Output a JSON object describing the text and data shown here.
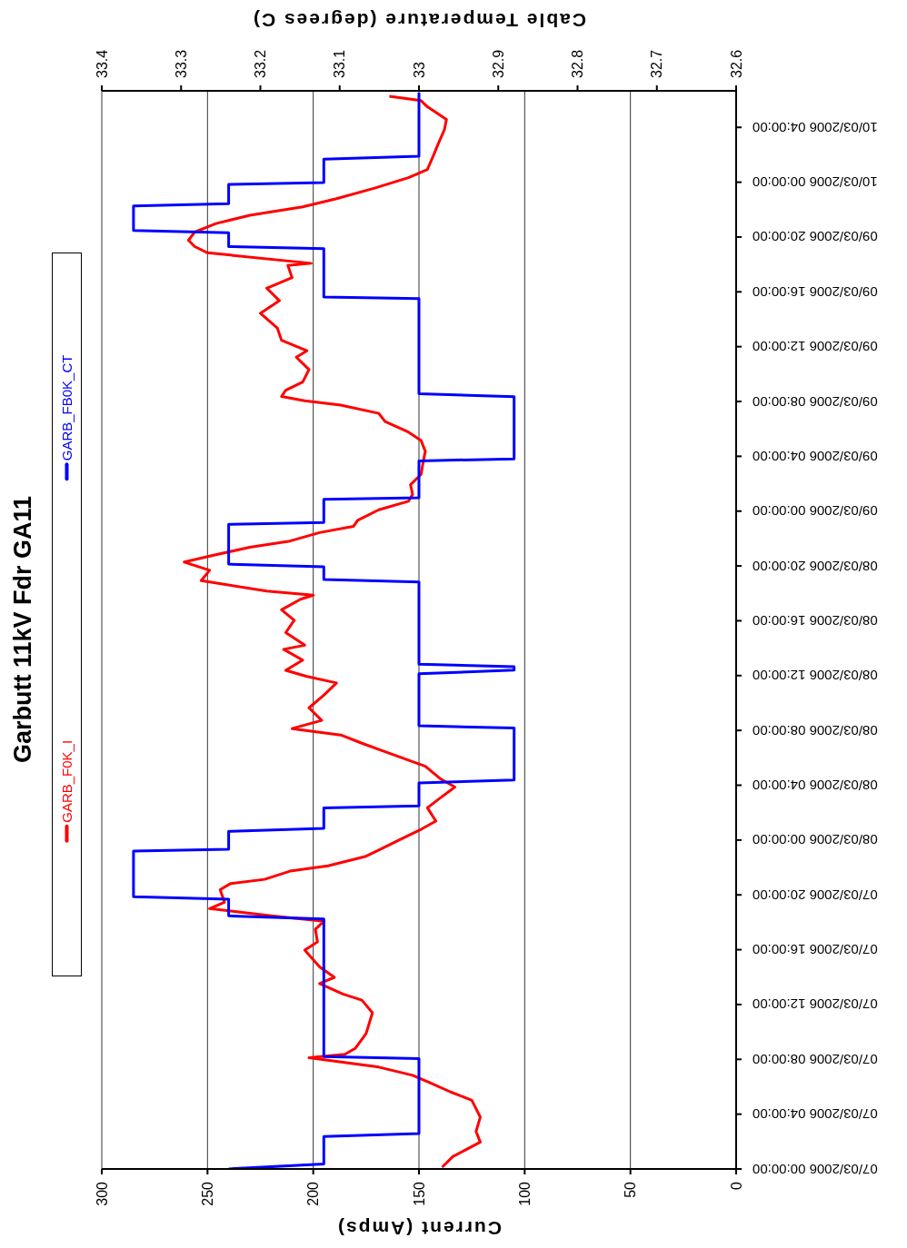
{
  "chart_data": {
    "type": "line",
    "orientation": "horizontal",
    "title": "Garbutt 11kV Fdr GA11",
    "xlabel": "Current (Amps)",
    "x2label": "Cable Temperature (degrees C)",
    "ylim": [
      "2006-03-07T00:00",
      "2006-03-10T06:40"
    ],
    "yticks": [
      {
        "value": "2006-03-07T00:00",
        "label": "07/03/2006 00:00:00"
      },
      {
        "value": "2006-03-07T04:00",
        "label": "07/03/2006 04:00:00"
      },
      {
        "value": "2006-03-07T08:00",
        "label": "07/03/2006 08:00:00"
      },
      {
        "value": "2006-03-07T12:00",
        "label": "07/03/2006 12:00:00"
      },
      {
        "value": "2006-03-07T16:00",
        "label": "07/03/2006 16:00:00"
      },
      {
        "value": "2006-03-07T20:00",
        "label": "07/03/2006 20:00:00"
      },
      {
        "value": "2006-03-08T00:00",
        "label": "08/03/2006 00:00:00"
      },
      {
        "value": "2006-03-08T04:00",
        "label": "08/03/2006 04:00:00"
      },
      {
        "value": "2006-03-08T08:00",
        "label": "08/03/2006 08:00:00"
      },
      {
        "value": "2006-03-08T12:00",
        "label": "08/03/2006 12:00:00"
      },
      {
        "value": "2006-03-08T16:00",
        "label": "08/03/2006 16:00:00"
      },
      {
        "value": "2006-03-08T20:00",
        "label": "08/03/2006 20:00:00"
      },
      {
        "value": "2006-03-09T00:00",
        "label": "09/03/2006 00:00:00"
      },
      {
        "value": "2006-03-09T04:00",
        "label": "09/03/2006 04:00:00"
      },
      {
        "value": "2006-03-09T08:00",
        "label": "09/03/2006 08:00:00"
      },
      {
        "value": "2006-03-09T12:00",
        "label": "09/03/2006 12:00:00"
      },
      {
        "value": "2006-03-09T16:00",
        "label": "09/03/2006 16:00:00"
      },
      {
        "value": "2006-03-09T20:00",
        "label": "09/03/2006 20:00:00"
      },
      {
        "value": "2006-03-10T00:00",
        "label": "10/03/2006 00:00:00"
      },
      {
        "value": "2006-03-10T04:00",
        "label": "10/03/2006 04:00:00"
      }
    ],
    "xlim": [
      300,
      0
    ],
    "xticks": [
      300,
      250,
      200,
      150,
      100,
      50,
      0
    ],
    "x2lim": [
      33.4,
      32.6
    ],
    "x2ticks": [
      33.4,
      33.3,
      33.2,
      33.1,
      33,
      32.9,
      32.8,
      32.7,
      32.6
    ],
    "grid": "x",
    "legend": "left",
    "series": [
      {
        "name": "GARB_F0K_I",
        "color": "#ff0000",
        "x": [
          "2006-03-07T00:08",
          "2006-03-07T00:54",
          "2006-03-07T01:58",
          "2006-03-07T02:44",
          "2006-03-07T03:47",
          "2006-03-07T05:01",
          "2006-03-07T05:37",
          "2006-03-07T06:14",
          "2006-03-07T06:50",
          "2006-03-07T07:26",
          "2006-03-07T08:07",
          "2006-03-07T08:22",
          "2006-03-07T08:49",
          "2006-03-07T09:53",
          "2006-03-07T11:24",
          "2006-03-07T12:19",
          "2006-03-07T12:46",
          "2006-03-07T13:32",
          "2006-03-07T13:59",
          "2006-03-07T14:45",
          "2006-03-07T15:58",
          "2006-03-07T16:34",
          "2006-03-07T17:29",
          "2006-03-07T18:05",
          "2006-03-07T18:28",
          "2006-03-07T19:00",
          "2006-03-07T19:28",
          "2006-03-07T20:23",
          "2006-03-07T20:50",
          "2006-03-07T21:08",
          "2006-03-07T21:44",
          "2006-03-07T22:07",
          "2006-03-07T22:49",
          "2006-03-07T23:16",
          "2006-03-08T00:02",
          "2006-03-08T00:47",
          "2006-03-08T01:23",
          "2006-03-08T02:21",
          "2006-03-08T02:57",
          "2006-03-08T03:52",
          "2006-03-08T04:29",
          "2006-03-08T05:23",
          "2006-03-08T05:50",
          "2006-03-08T06:27",
          "2006-03-08T07:04",
          "2006-03-08T07:40",
          "2006-03-08T08:08",
          "2006-03-08T08:44",
          "2006-03-08T09:39",
          "2006-03-08T10:34",
          "2006-03-08T11:28",
          "2006-03-08T11:56",
          "2006-03-08T12:23",
          "2006-03-08T13:08",
          "2006-03-08T13:55",
          "2006-03-08T14:13",
          "2006-03-08T15:08",
          "2006-03-08T16:02",
          "2006-03-08T16:48",
          "2006-03-08T17:34",
          "2006-03-08T17:52",
          "2006-03-08T18:10",
          "2006-03-08T18:56",
          "2006-03-08T19:41",
          "2006-03-08T20:17",
          "2006-03-08T20:45",
          "2006-03-08T21:22",
          "2006-03-08T21:49",
          "2006-03-08T22:26",
          "2006-03-08T22:53",
          "2006-03-08T23:20",
          "2006-03-09T00:06",
          "2006-03-09T00:43",
          "2006-03-09T01:13",
          "2006-03-09T01:56",
          "2006-03-09T02:41",
          "2006-03-09T03:36",
          "2006-03-09T04:22",
          "2006-03-09T05:09",
          "2006-03-09T05:46",
          "2006-03-09T06:32",
          "2006-03-09T07:08",
          "2006-03-09T07:44",
          "2006-03-09T08:03",
          "2006-03-09T08:22",
          "2006-03-09T08:49",
          "2006-03-09T09:25",
          "2006-03-09T10:20",
          "2006-03-09T11:14",
          "2006-03-09T11:42",
          "2006-03-09T12:28",
          "2006-03-09T13:22",
          "2006-03-09T14:26",
          "2006-03-09T15:21",
          "2006-03-09T16:16",
          "2006-03-09T17:02",
          "2006-03-09T17:56",
          "2006-03-09T18:05",
          "2006-03-09T18:51",
          "2006-03-09T19:18",
          "2006-03-09T19:46",
          "2006-03-09T20:22",
          "2006-03-09T20:59",
          "2006-03-09T21:35",
          "2006-03-09T22:12",
          "2006-03-09T22:48",
          "2006-03-09T23:34",
          "2006-03-10T00:20",
          "2006-03-10T00:56",
          "2006-03-10T02:00",
          "2006-03-10T02:46",
          "2006-03-10T03:49",
          "2006-03-10T04:35",
          "2006-03-10T05:30",
          "2006-03-10T05:57",
          "2006-03-10T06:16"
        ],
        "values": [
          139,
          134,
          121,
          123,
          121,
          125,
          135,
          144,
          153,
          169,
          202,
          185,
          180,
          175,
          172,
          177,
          186,
          197,
          190,
          197,
          204,
          198,
          199,
          195,
          220,
          249,
          242,
          244,
          239,
          223,
          211,
          193,
          175,
          169,
          159,
          149,
          142,
          146,
          141,
          133,
          140,
          147,
          155,
          166,
          177,
          187,
          210,
          196,
          202,
          195,
          189,
          203,
          213,
          205,
          214,
          204,
          213,
          209,
          215,
          206,
          200,
          222,
          253,
          249,
          261,
          248,
          230,
          211,
          197,
          181,
          179,
          169,
          155,
          153,
          154,
          149,
          148,
          147,
          149,
          155,
          166,
          169,
          187,
          204,
          215,
          213,
          205,
          202,
          208,
          203,
          215,
          217,
          225,
          216,
          222,
          210,
          212,
          201,
          250,
          256,
          259,
          256,
          246,
          230,
          205,
          189,
          171,
          155,
          146,
          143,
          141,
          138,
          137,
          146,
          149,
          164
        ]
      },
      {
        "name": "GARB_FB0K_CT",
        "color": "#0000ff",
        "axis": "x2",
        "x": [
          "2006-03-07T00:00",
          "2006-03-07T00:22",
          "2006-03-07T02:22",
          "2006-03-07T02:35",
          "2006-03-07T08:03",
          "2006-03-07T08:12",
          "2006-03-07T18:15",
          "2006-03-07T18:28",
          "2006-03-07T19:41",
          "2006-03-07T19:52",
          "2006-03-07T23:12",
          "2006-03-07T23:20",
          "2006-03-08T00:38",
          "2006-03-08T00:51",
          "2006-03-08T02:21",
          "2006-03-08T02:30",
          "2006-03-08T04:10",
          "2006-03-08T04:23",
          "2006-03-08T08:11",
          "2006-03-08T08:20",
          "2006-03-08T12:08",
          "2006-03-08T12:24",
          "2006-03-08T12:39",
          "2006-03-08T12:50",
          "2006-03-08T18:50",
          "2006-03-08T19:01",
          "2006-03-08T19:56",
          "2006-03-08T20:08",
          "2006-03-08T23:02",
          "2006-03-08T23:10",
          "2006-03-09T00:52",
          "2006-03-09T00:59",
          "2006-03-09T03:40",
          "2006-03-09T03:49",
          "2006-03-09T08:21",
          "2006-03-09T08:34",
          "2006-03-09T15:30",
          "2006-03-09T15:37",
          "2006-03-09T19:09",
          "2006-03-09T19:18",
          "2006-03-09T20:19",
          "2006-03-09T20:29",
          "2006-03-09T22:16",
          "2006-03-09T22:26",
          "2006-03-09T23:50",
          "2006-03-09T23:58",
          "2006-03-10T01:41",
          "2006-03-10T01:54",
          "2006-03-10T06:32"
        ],
        "values": [
          33.24,
          33.12,
          33.12,
          33.0,
          33.0,
          33.12,
          33.12,
          33.24,
          33.24,
          33.36,
          33.36,
          33.24,
          33.24,
          33.12,
          33.12,
          33.0,
          33.0,
          32.88,
          32.88,
          33.0,
          33.0,
          32.88,
          32.88,
          33.0,
          33.0,
          33.12,
          33.12,
          33.24,
          33.24,
          33.12,
          33.12,
          33.0,
          33.0,
          32.88,
          32.88,
          33.0,
          33.0,
          33.12,
          33.12,
          33.24,
          33.24,
          33.36,
          33.36,
          33.24,
          33.24,
          33.12,
          33.12,
          33.0,
          33.0
        ]
      }
    ]
  }
}
